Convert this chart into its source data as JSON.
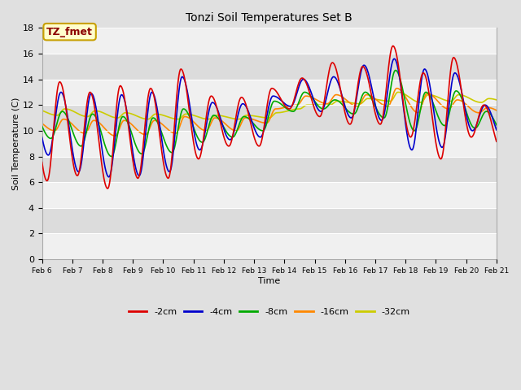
{
  "title": "Tonzi Soil Temperatures Set B",
  "xlabel": "Time",
  "ylabel": "Soil Temperature (C)",
  "ylim": [
    0,
    18
  ],
  "yticks": [
    0,
    2,
    4,
    6,
    8,
    10,
    12,
    14,
    16,
    18
  ],
  "xtick_labels": [
    "Feb 6",
    "Feb 7",
    "Feb 8",
    "Feb 9",
    "Feb 10",
    "Feb 11",
    "Feb 12",
    "Feb 13",
    "Feb 14",
    "Feb 15",
    "Feb 16",
    "Feb 17",
    "Feb 18",
    "Feb 19",
    "Feb 20",
    "Feb 21"
  ],
  "annotation_text": "TZ_fmet",
  "annotation_color": "#8B0000",
  "annotation_bg": "#FFFFCC",
  "annotation_border": "#C8A000",
  "series": {
    "neg2cm": {
      "label": "-2cm",
      "color": "#DD0000"
    },
    "neg4cm": {
      "label": "-4cm",
      "color": "#0000CC"
    },
    "neg8cm": {
      "label": "-8cm",
      "color": "#00AA00"
    },
    "neg16cm": {
      "label": "-16cm",
      "color": "#FF8800"
    },
    "neg32cm": {
      "label": "-32cm",
      "color": "#CCCC00"
    }
  },
  "bg_light": "#F0F0F0",
  "bg_dark": "#DCDCDC",
  "grid_color": "#FFFFFF",
  "linewidth": 1.2,
  "peaks_2cm": [
    13.8,
    13.0,
    13.5,
    13.3,
    14.8,
    12.7,
    12.6,
    13.3,
    14.1,
    15.3,
    15.0,
    16.6,
    14.5,
    15.7,
    12.0,
    10.0
  ],
  "troughs_2cm": [
    6.1,
    6.5,
    5.5,
    6.3,
    6.3,
    7.8,
    8.8,
    8.8,
    11.7,
    11.1,
    10.5,
    10.5,
    9.5,
    7.8,
    9.5,
    8.5
  ],
  "peaks_4cm": [
    13.0,
    12.9,
    12.8,
    13.0,
    14.2,
    12.2,
    12.1,
    12.7,
    14.0,
    14.2,
    15.1,
    15.6,
    14.8,
    14.5,
    12.0,
    9.5
  ],
  "troughs_4cm": [
    8.1,
    6.8,
    6.4,
    6.5,
    6.8,
    8.5,
    9.3,
    9.5,
    11.9,
    11.5,
    11.0,
    10.8,
    8.5,
    8.7,
    10.0,
    9.3
  ],
  "peaks_8cm": [
    11.5,
    11.3,
    11.1,
    11.0,
    11.7,
    11.2,
    11.1,
    12.3,
    13.0,
    12.4,
    13.0,
    14.7,
    13.0,
    13.1,
    11.5,
    10.4
  ],
  "troughs_8cm": [
    9.4,
    8.8,
    8.0,
    8.2,
    8.3,
    9.1,
    9.5,
    10.0,
    11.5,
    11.7,
    11.3,
    11.0,
    10.0,
    10.4,
    10.2,
    9.6
  ],
  "peaks_16cm": [
    10.9,
    10.8,
    10.8,
    10.8,
    11.1,
    11.0,
    11.0,
    11.7,
    12.7,
    12.8,
    12.8,
    13.3,
    12.9,
    12.4,
    11.8,
    11.5
  ],
  "troughs_16cm": [
    10.0,
    9.8,
    9.6,
    9.7,
    9.8,
    10.0,
    10.0,
    10.6,
    12.0,
    12.1,
    11.9,
    11.9,
    11.4,
    11.7,
    11.4,
    11.2
  ],
  "peaks_32cm": [
    11.7,
    11.55,
    11.4,
    11.3,
    11.3,
    11.2,
    11.2,
    11.4,
    12.0,
    12.3,
    12.5,
    13.0,
    12.8,
    12.8,
    12.5,
    12.5
  ],
  "troughs_32cm": [
    11.2,
    11.1,
    11.0,
    10.9,
    10.9,
    10.9,
    10.9,
    11.0,
    11.7,
    12.0,
    12.1,
    12.3,
    12.2,
    12.3,
    12.2,
    12.1
  ]
}
